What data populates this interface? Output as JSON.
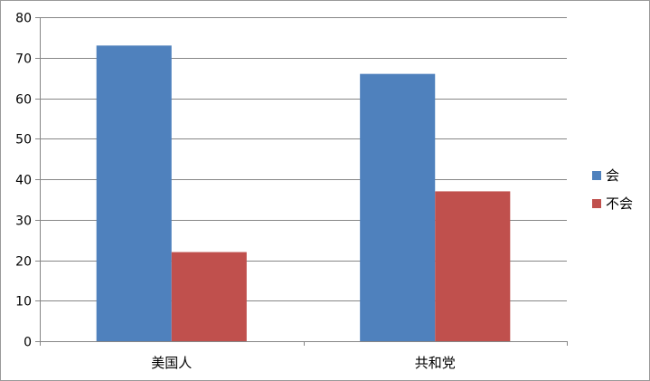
{
  "chart_data": {
    "type": "bar",
    "categories": [
      "美国人",
      "共和党"
    ],
    "series": [
      {
        "name": "会",
        "values": [
          73,
          66
        ],
        "color": "#4F81BD"
      },
      {
        "name": "不会",
        "values": [
          22,
          37
        ],
        "color": "#C0504D"
      }
    ],
    "ylim": [
      0,
      80
    ],
    "yticks": [
      0,
      10,
      20,
      30,
      40,
      50,
      60,
      70,
      80
    ],
    "grid": true,
    "legend": "right"
  }
}
